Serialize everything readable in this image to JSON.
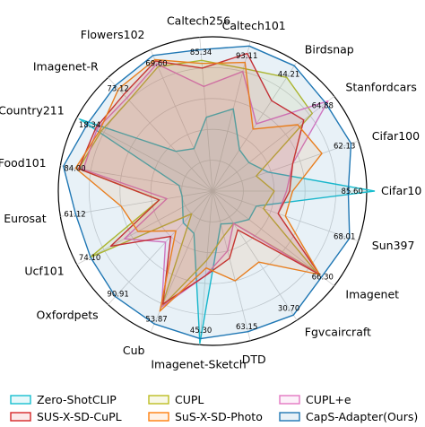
{
  "chart_data": {
    "type": "radar",
    "axes": [
      "Cifar10",
      "Cifar100",
      "Stanfordcars",
      "Birdsnap",
      "Caltech101",
      "Caltech256",
      "Flowers102",
      "Imagenet-R",
      "Country211",
      "Food101",
      "Eurosat",
      "Ucf101",
      "Oxfordpets",
      "Cub",
      "Imagenet-Sketch",
      "DTD",
      "Fgvcaircraft",
      "Imagenet",
      "Sun397"
    ],
    "value_labels": [
      "85.60",
      "62.13",
      "64.88",
      "44.21",
      "93.11",
      "85.34",
      "69.60",
      "73.12",
      "18.34",
      "84.00",
      "61.12",
      "74.10",
      "90.91",
      "53.87",
      "45.30",
      "63.15",
      "30.70",
      "66.30",
      "68.01"
    ],
    "radial_range": [
      0,
      1
    ],
    "grid": true,
    "legend_position": "bottom",
    "series": [
      {
        "name": "Zero-ShotCLIP",
        "color": "#17becf",
        "values": [
          1.05,
          0.38,
          0.3,
          0.32,
          0.55,
          0.48,
          0.3,
          0.35,
          0.98,
          0.22,
          0.2,
          0.22,
          0.28,
          0.3,
          0.99,
          0.22,
          0.25,
          0.3,
          0.3
        ]
      },
      {
        "name": "CUPL",
        "color": "#bcbd22",
        "values": [
          0.4,
          0.3,
          0.82,
          0.88,
          0.82,
          0.85,
          0.88,
          0.8,
          0.82,
          0.88,
          0.35,
          0.9,
          0.2,
          0.82,
          0.45,
          0.3,
          0.25,
          0.85,
          0.35
        ]
      },
      {
        "name": "CUPL+e",
        "color": "#e377c2",
        "values": [
          0.48,
          0.55,
          0.95,
          0.52,
          0.8,
          0.68,
          0.9,
          0.82,
          0.85,
          0.85,
          0.3,
          0.65,
          0.45,
          0.82,
          0.55,
          0.4,
          0.25,
          0.88,
          0.45
        ]
      },
      {
        "name": "SUS-X-SD-CuPL",
        "color": "#d62728",
        "values": [
          0.5,
          0.55,
          0.75,
          0.7,
          0.92,
          0.8,
          0.92,
          0.85,
          0.86,
          0.88,
          0.35,
          0.75,
          0.4,
          0.8,
          0.55,
          0.45,
          0.3,
          0.88,
          0.45
        ]
      },
      {
        "name": "SuS-X-SD-Photo",
        "color": "#ff7f0e",
        "values": [
          0.52,
          0.75,
          0.7,
          0.48,
          0.86,
          0.83,
          0.93,
          0.9,
          0.83,
          0.9,
          0.6,
          0.55,
          0.35,
          0.85,
          0.5,
          0.6,
          0.55,
          0.88,
          0.5
        ]
      },
      {
        "name": "CapS-Adapter(Ours)",
        "color": "#1f77b4",
        "values": [
          0.88,
          0.95,
          0.93,
          0.97,
          0.97,
          0.92,
          0.96,
          0.93,
          0.92,
          0.98,
          0.9,
          0.9,
          0.93,
          0.94,
          0.96,
          0.94,
          0.96,
          0.9,
          0.94
        ]
      }
    ]
  }
}
